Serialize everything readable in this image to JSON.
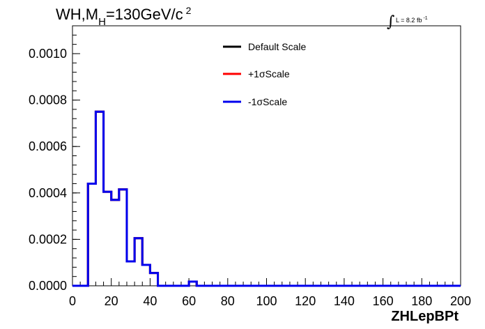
{
  "chart_data": {
    "type": "line",
    "title_main": "WH,M",
    "title_sub": "H",
    "title_rest": "=130GeV/c",
    "title_sup": "2",
    "lumi_symbol": "∫",
    "lumi_text": "L = 8.2 fb",
    "lumi_sup": "-1",
    "xlabel": "ZHLepBPt",
    "ylabel": "",
    "xlim": [
      0,
      200
    ],
    "ylim": [
      0,
      0.00112
    ],
    "x_ticks": [
      "0",
      "20",
      "40",
      "60",
      "80",
      "100",
      "120",
      "140",
      "160",
      "180",
      "200"
    ],
    "y_ticks": [
      "0.0000",
      "0.0002",
      "0.0004",
      "0.0006",
      "0.0008",
      "0.0010"
    ],
    "legend_position": "top-center",
    "bin_edges": [
      0,
      4,
      8,
      12,
      16,
      20,
      24,
      28,
      32,
      36,
      40,
      44,
      48,
      52,
      56,
      60,
      64,
      68,
      72,
      76,
      80,
      84,
      88,
      92,
      96,
      100,
      104,
      108,
      112,
      116,
      120,
      124,
      128,
      132,
      136,
      140,
      144,
      148,
      152,
      156,
      160,
      164,
      168,
      172,
      176,
      180,
      184,
      188,
      192,
      196,
      200
    ],
    "series": [
      {
        "name": "Default Scale",
        "color": "#000000",
        "values": [
          0,
          0,
          0.00044,
          0.00075,
          0.000405,
          0.00037,
          0.000415,
          0.000105,
          0.000205,
          9e-05,
          5.5e-05,
          0,
          0,
          0,
          0,
          1.8e-05,
          0,
          0,
          0,
          0,
          0,
          0,
          0,
          0,
          0,
          0,
          0,
          0,
          0,
          0,
          0,
          0,
          0,
          0,
          0,
          0,
          0,
          0,
          0,
          0,
          0,
          0,
          0,
          0,
          0,
          0,
          0,
          0,
          0,
          0
        ]
      },
      {
        "name": "+1σScale",
        "color": "#ff0000",
        "values": [
          0,
          0,
          0.00044,
          0.00075,
          0.000405,
          0.00037,
          0.000415,
          0.000105,
          0.000205,
          9e-05,
          5.5e-05,
          0,
          0,
          0,
          0,
          1.8e-05,
          0,
          0,
          0,
          0,
          0,
          0,
          0,
          0,
          0,
          0,
          0,
          0,
          0,
          0,
          0,
          0,
          0,
          0,
          0,
          0,
          0,
          0,
          0,
          0,
          0,
          0,
          0,
          0,
          0,
          0,
          0,
          0,
          0,
          0
        ]
      },
      {
        "name": "-1σScale",
        "color": "#0000ee",
        "values": [
          0,
          0,
          0.00044,
          0.00075,
          0.000405,
          0.00037,
          0.000415,
          0.000105,
          0.000205,
          9e-05,
          5.5e-05,
          0,
          0,
          0,
          0,
          1.8e-05,
          0,
          0,
          0,
          0,
          0,
          0,
          0,
          0,
          0,
          0,
          0,
          0,
          0,
          0,
          0,
          0,
          0,
          0,
          0,
          0,
          0,
          0,
          0,
          0,
          0,
          0,
          0,
          0,
          0,
          0,
          0,
          0,
          0,
          0
        ]
      }
    ]
  }
}
